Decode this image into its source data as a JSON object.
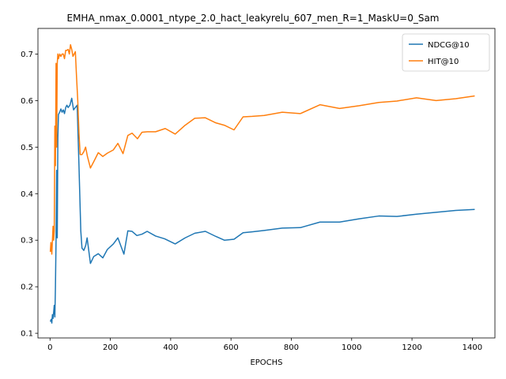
{
  "chart_data": {
    "type": "line",
    "title": "EMHA_nmax_0.0001_ntype_2.0_hact_leakyrelu_607_men_R=1_MaskU=0_Sam",
    "xlabel": "EPOCHS",
    "ylabel": "",
    "xlim": [
      -40,
      1475
    ],
    "ylim": [
      0.09,
      0.755
    ],
    "xticks": [
      0,
      200,
      400,
      600,
      800,
      1000,
      1200,
      1400
    ],
    "yticks": [
      0.1,
      0.2,
      0.3,
      0.4,
      0.5,
      0.6,
      0.7
    ],
    "ytick_labels": [
      "0.1",
      "0.2",
      "0.3",
      "0.4",
      "0.5",
      "0.6",
      "0.7"
    ],
    "grid": false,
    "legend_position": "top-right",
    "series": [
      {
        "name": "NDCG@10",
        "color": "#1f77b4",
        "points": [
          [
            1,
            0.125
          ],
          [
            4,
            0.13
          ],
          [
            6,
            0.122
          ],
          [
            8,
            0.14
          ],
          [
            10,
            0.132
          ],
          [
            12,
            0.145
          ],
          [
            14,
            0.16
          ],
          [
            16,
            0.135
          ],
          [
            18,
            0.2
          ],
          [
            20,
            0.3
          ],
          [
            22,
            0.45
          ],
          [
            24,
            0.305
          ],
          [
            26,
            0.52
          ],
          [
            28,
            0.57
          ],
          [
            32,
            0.575
          ],
          [
            36,
            0.582
          ],
          [
            40,
            0.575
          ],
          [
            44,
            0.58
          ],
          [
            48,
            0.572
          ],
          [
            52,
            0.585
          ],
          [
            56,
            0.59
          ],
          [
            60,
            0.585
          ],
          [
            66,
            0.59
          ],
          [
            72,
            0.605
          ],
          [
            78,
            0.58
          ],
          [
            84,
            0.585
          ],
          [
            90,
            0.59
          ],
          [
            96,
            0.46
          ],
          [
            102,
            0.32
          ],
          [
            106,
            0.283
          ],
          [
            112,
            0.278
          ],
          [
            118,
            0.288
          ],
          [
            123,
            0.305
          ],
          [
            128,
            0.28
          ],
          [
            134,
            0.25
          ],
          [
            145,
            0.265
          ],
          [
            160,
            0.271
          ],
          [
            175,
            0.262
          ],
          [
            190,
            0.28
          ],
          [
            210,
            0.292
          ],
          [
            225,
            0.305
          ],
          [
            245,
            0.27
          ],
          [
            258,
            0.32
          ],
          [
            272,
            0.319
          ],
          [
            288,
            0.31
          ],
          [
            305,
            0.313
          ],
          [
            322,
            0.319
          ],
          [
            350,
            0.309
          ],
          [
            380,
            0.303
          ],
          [
            415,
            0.292
          ],
          [
            448,
            0.305
          ],
          [
            480,
            0.315
          ],
          [
            515,
            0.319
          ],
          [
            550,
            0.308
          ],
          [
            578,
            0.3
          ],
          [
            610,
            0.302
          ],
          [
            640,
            0.316
          ],
          [
            670,
            0.318
          ],
          [
            710,
            0.321
          ],
          [
            770,
            0.326
          ],
          [
            830,
            0.327
          ],
          [
            895,
            0.339
          ],
          [
            960,
            0.339
          ],
          [
            1025,
            0.346
          ],
          [
            1090,
            0.352
          ],
          [
            1150,
            0.351
          ],
          [
            1215,
            0.356
          ],
          [
            1280,
            0.36
          ],
          [
            1345,
            0.364
          ],
          [
            1408,
            0.366
          ]
        ]
      },
      {
        "name": "HIT@10",
        "color": "#ff7f0e",
        "points": [
          [
            1,
            0.275
          ],
          [
            3,
            0.295
          ],
          [
            6,
            0.27
          ],
          [
            8,
            0.3
          ],
          [
            10,
            0.33
          ],
          [
            12,
            0.3
          ],
          [
            14,
            0.32
          ],
          [
            16,
            0.545
          ],
          [
            18,
            0.46
          ],
          [
            20,
            0.68
          ],
          [
            22,
            0.5
          ],
          [
            24,
            0.68
          ],
          [
            26,
            0.7
          ],
          [
            28,
            0.69
          ],
          [
            32,
            0.7
          ],
          [
            36,
            0.695
          ],
          [
            40,
            0.7
          ],
          [
            44,
            0.7
          ],
          [
            48,
            0.69
          ],
          [
            52,
            0.708
          ],
          [
            56,
            0.708
          ],
          [
            60,
            0.71
          ],
          [
            64,
            0.7
          ],
          [
            68,
            0.72
          ],
          [
            72,
            0.71
          ],
          [
            76,
            0.695
          ],
          [
            80,
            0.7
          ],
          [
            84,
            0.705
          ],
          [
            88,
            0.65
          ],
          [
            92,
            0.6
          ],
          [
            96,
            0.53
          ],
          [
            100,
            0.484
          ],
          [
            106,
            0.484
          ],
          [
            112,
            0.49
          ],
          [
            118,
            0.5
          ],
          [
            124,
            0.48
          ],
          [
            134,
            0.455
          ],
          [
            146,
            0.47
          ],
          [
            160,
            0.488
          ],
          [
            175,
            0.48
          ],
          [
            190,
            0.487
          ],
          [
            210,
            0.494
          ],
          [
            225,
            0.508
          ],
          [
            242,
            0.486
          ],
          [
            258,
            0.525
          ],
          [
            272,
            0.53
          ],
          [
            290,
            0.518
          ],
          [
            305,
            0.532
          ],
          [
            322,
            0.533
          ],
          [
            350,
            0.533
          ],
          [
            382,
            0.54
          ],
          [
            415,
            0.528
          ],
          [
            448,
            0.547
          ],
          [
            480,
            0.562
          ],
          [
            515,
            0.563
          ],
          [
            550,
            0.552
          ],
          [
            578,
            0.547
          ],
          [
            610,
            0.537
          ],
          [
            640,
            0.565
          ],
          [
            670,
            0.566
          ],
          [
            710,
            0.568
          ],
          [
            770,
            0.575
          ],
          [
            830,
            0.572
          ],
          [
            895,
            0.591
          ],
          [
            960,
            0.583
          ],
          [
            1025,
            0.589
          ],
          [
            1090,
            0.596
          ],
          [
            1150,
            0.599
          ],
          [
            1215,
            0.606
          ],
          [
            1280,
            0.6
          ],
          [
            1345,
            0.604
          ],
          [
            1408,
            0.61
          ]
        ]
      }
    ]
  }
}
